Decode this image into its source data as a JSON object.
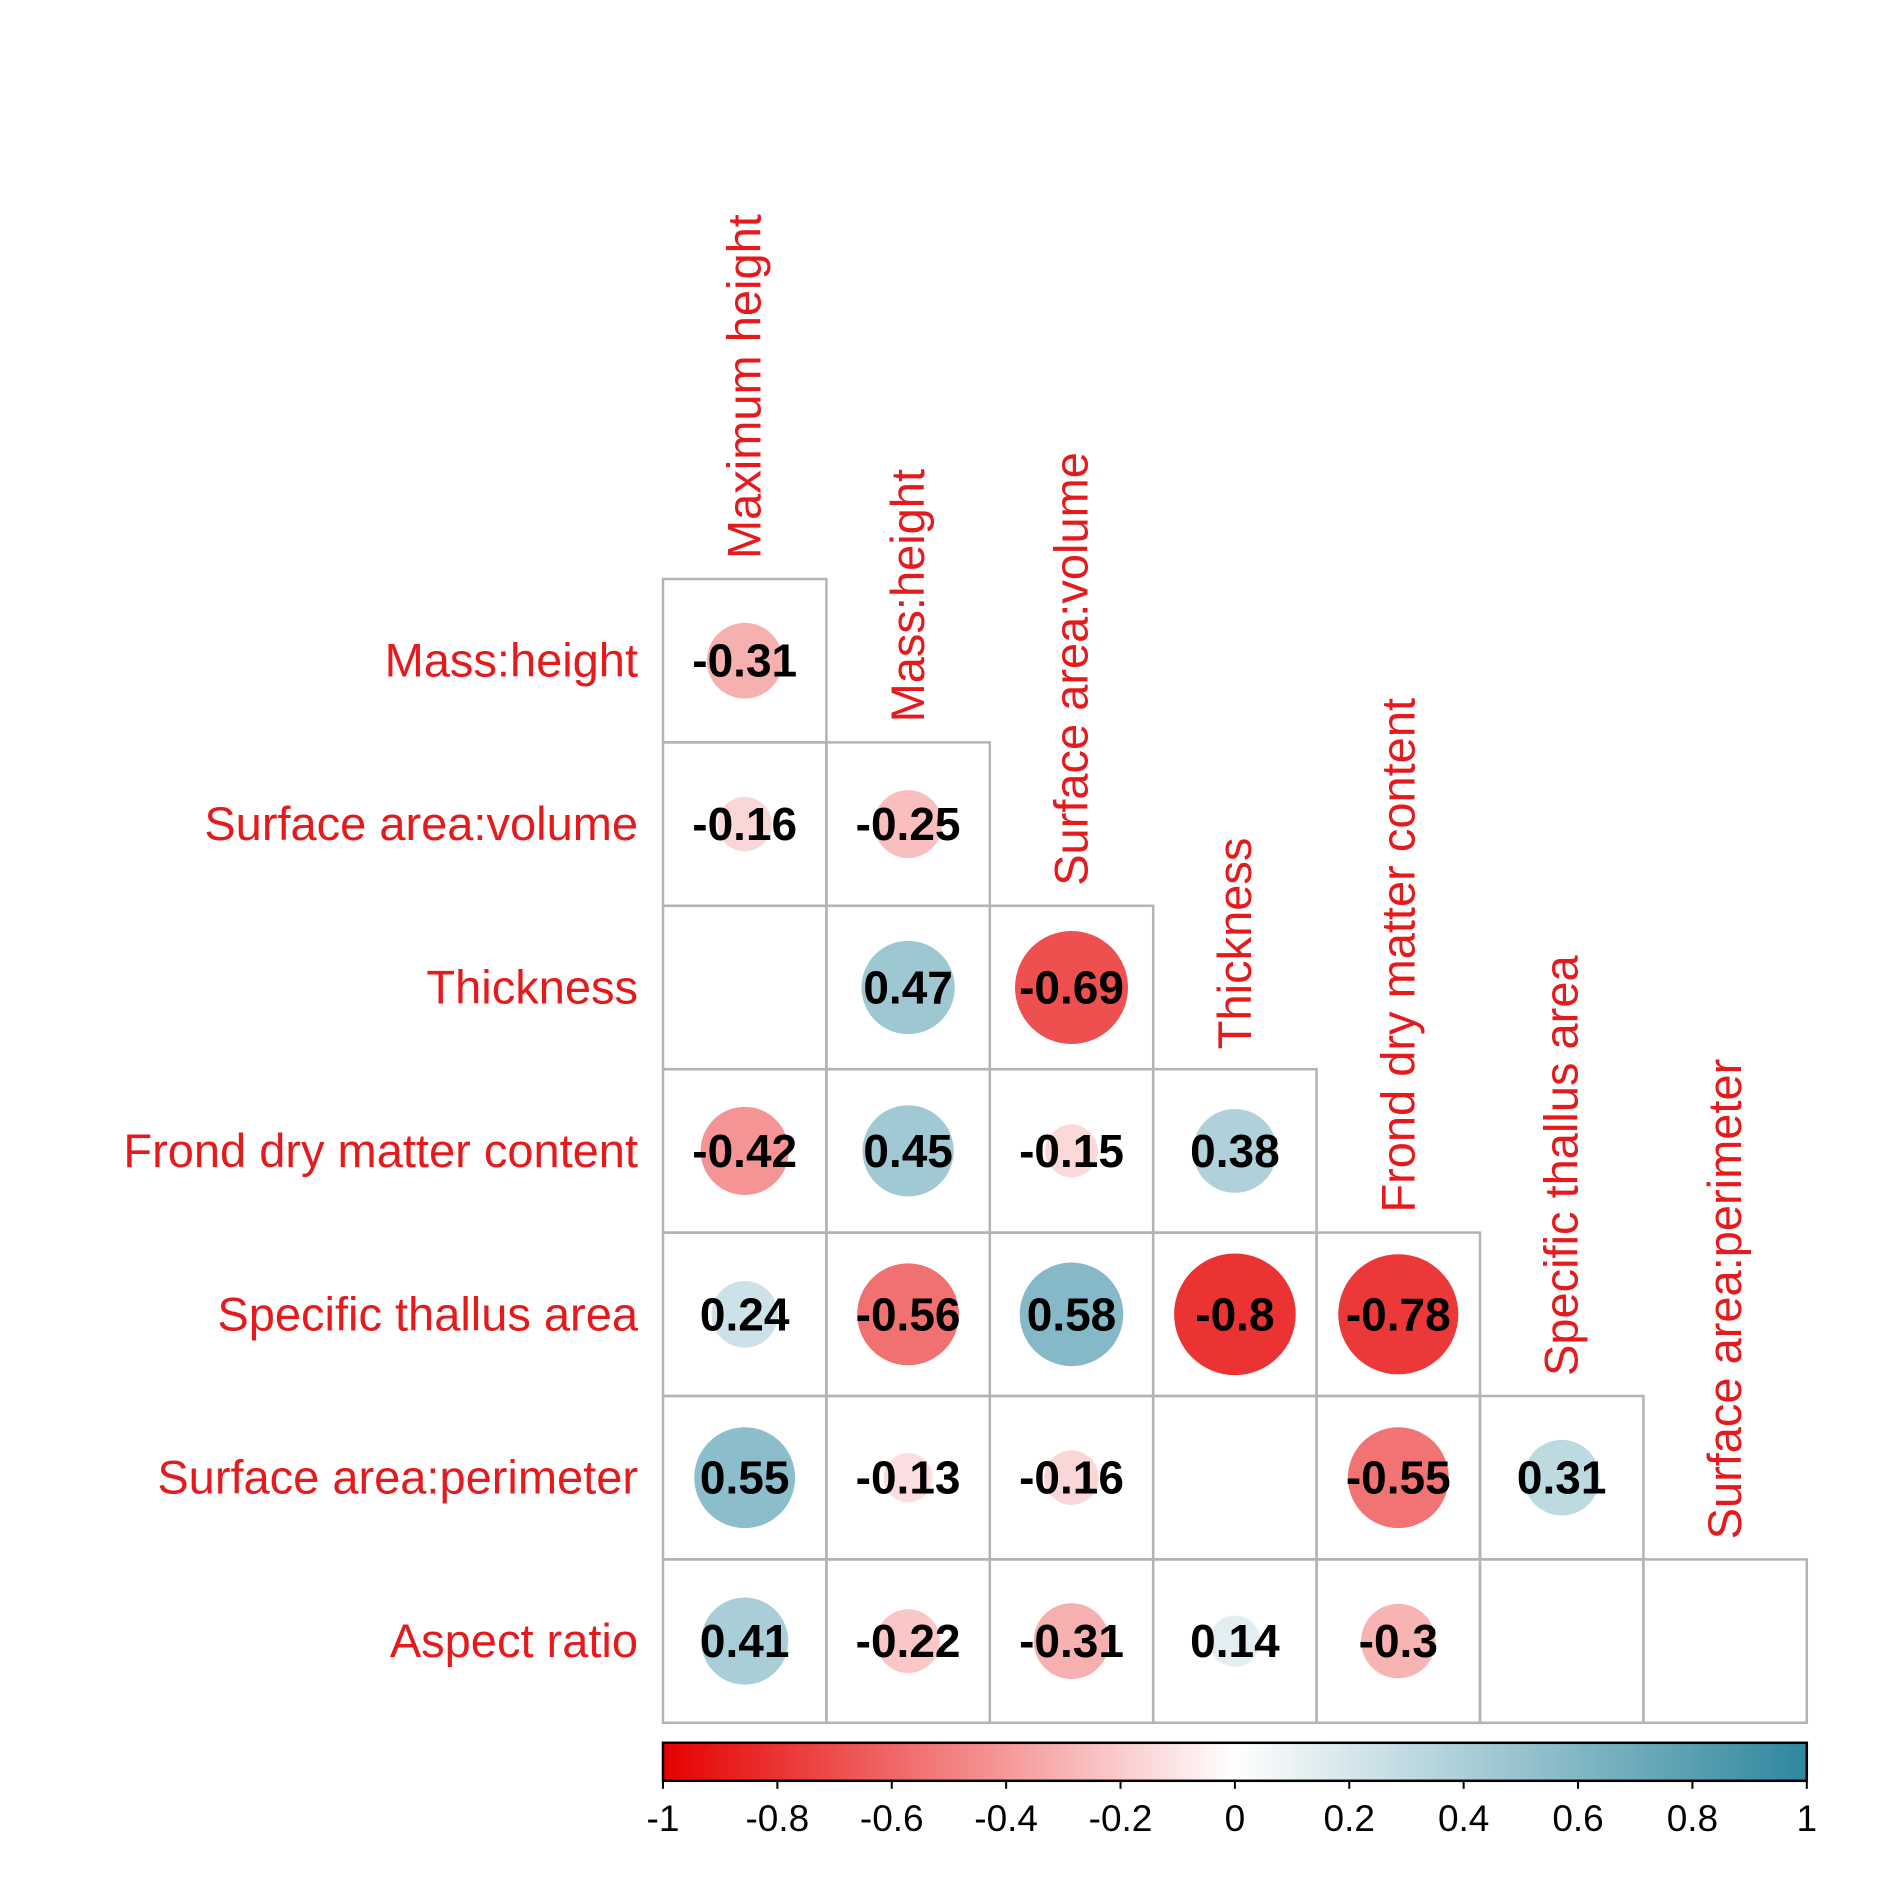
{
  "chart_data": {
    "type": "heatmap",
    "subtype": "correlation-matrix-lower-circles",
    "variables": [
      "Maximum height",
      "Mass:height",
      "Surface area:volume",
      "Thickness",
      "Frond dry matter content",
      "Specific thallus area",
      "Surface area:perimeter",
      "Aspect ratio"
    ],
    "row_labels": [
      "Mass:height",
      "Surface area:volume",
      "Thickness",
      "Frond dry matter content",
      "Specific thallus area",
      "Surface area:perimeter",
      "Aspect ratio"
    ],
    "col_labels": [
      "Maximum height",
      "Mass:height",
      "Surface area:volume",
      "Thickness",
      "Frond dry matter content",
      "Specific thallus area",
      "Surface area:perimeter"
    ],
    "matrix": [
      [
        -0.31,
        null,
        null,
        null,
        null,
        null,
        null
      ],
      [
        -0.16,
        -0.25,
        null,
        null,
        null,
        null,
        null
      ],
      [
        null,
        0.47,
        -0.69,
        null,
        null,
        null,
        null
      ],
      [
        -0.42,
        0.45,
        -0.15,
        0.38,
        null,
        null,
        null
      ],
      [
        0.24,
        -0.56,
        0.58,
        -0.8,
        -0.78,
        null,
        null
      ],
      [
        0.55,
        -0.13,
        -0.16,
        null,
        -0.55,
        0.31,
        null
      ],
      [
        0.41,
        -0.22,
        -0.31,
        0.14,
        -0.3,
        null,
        null
      ]
    ],
    "value_labels": [
      [
        "-0.31",
        "",
        "",
        "",
        "",
        "",
        ""
      ],
      [
        "-0.16",
        "-0.25",
        "",
        "",
        "",
        "",
        ""
      ],
      [
        "",
        "0.47",
        "-0.69",
        "",
        "",
        "",
        ""
      ],
      [
        "-0.42",
        "0.45",
        "-0.15",
        "0.38",
        "",
        "",
        ""
      ],
      [
        "0.24",
        "-0.56",
        "0.58",
        "-0.8",
        "-0.78",
        "",
        ""
      ],
      [
        "0.55",
        "-0.13",
        "-0.16",
        "",
        "-0.55",
        "0.31",
        ""
      ],
      [
        "0.41",
        "-0.22",
        "-0.31",
        "0.14",
        "-0.3",
        "",
        ""
      ]
    ],
    "color_scale": {
      "range": [
        -1,
        1
      ],
      "ticks": [
        "-1",
        "-0.8",
        "-0.6",
        "-0.4",
        "-0.2",
        "0",
        "0.2",
        "0.4",
        "0.6",
        "0.8",
        "1"
      ],
      "colors": {
        "negative": "#e60000",
        "zero": "#ffffff",
        "positive": "#2e879e"
      }
    },
    "legend_position": "bottom",
    "label_color": "#e41a1c",
    "grid_color": "#b3b3b3"
  }
}
